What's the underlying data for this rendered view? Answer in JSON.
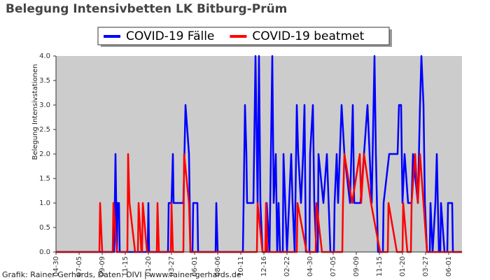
{
  "chart_data": {
    "type": "line",
    "title": "Belegung Intensivbetten LK Bitburg-Prüm",
    "y_label": "Belegung Intensivstationen",
    "footer": "Grafik: Rainer Gerhards, Daten: DIVI | www.rainer-gerhards.de",
    "xlim": [
      0,
      1160
    ],
    "ylim": [
      0,
      4
    ],
    "xticks": [
      {
        "value": 0,
        "label": "04-30"
      },
      {
        "value": 66,
        "label": "07-05"
      },
      {
        "value": 132,
        "label": "09-09"
      },
      {
        "value": 198,
        "label": "11-15"
      },
      {
        "value": 264,
        "label": "01-20"
      },
      {
        "value": 330,
        "label": "03-27"
      },
      {
        "value": 396,
        "label": "06-01"
      },
      {
        "value": 462,
        "label": "08-06"
      },
      {
        "value": 528,
        "label": "10-11"
      },
      {
        "value": 594,
        "label": "12-16"
      },
      {
        "value": 660,
        "label": "02-22"
      },
      {
        "value": 726,
        "label": "04-30"
      },
      {
        "value": 792,
        "label": "07-05"
      },
      {
        "value": 858,
        "label": "09-09"
      },
      {
        "value": 924,
        "label": "11-15"
      },
      {
        "value": 990,
        "label": "01-20"
      },
      {
        "value": 1056,
        "label": "03-27"
      },
      {
        "value": 1122,
        "label": "06-01"
      }
    ],
    "yticks": [
      {
        "value": 0,
        "label": "0.0"
      },
      0.5,
      {
        "value": 1,
        "label": "1.0"
      },
      1.5,
      {
        "value": 2,
        "label": "2.0"
      },
      2.5,
      {
        "value": 3,
        "label": "3.0"
      },
      3.5,
      {
        "value": 4,
        "label": "4.0"
      }
    ],
    "background": "#cccccc",
    "series": [
      {
        "name": "COVID-19 Fälle",
        "color": "#0000ff",
        "x": [
          0,
          166,
          170,
          174,
          176,
          180,
          182,
          262,
          264,
          266,
          320,
          322,
          330,
          334,
          336,
          364,
          370,
          380,
          384,
          390,
          392,
          404,
          406,
          456,
          458,
          462,
          534,
          536,
          540,
          544,
          546,
          564,
          570,
          576,
          580,
          584,
          590,
          600,
          602,
          610,
          616,
          618,
          622,
          628,
          632,
          636,
          640,
          648,
          650,
          660,
          666,
          672,
          676,
          682,
          688,
          692,
          700,
          706,
          710,
          714,
          724,
          726,
          734,
          738,
          744,
          748,
          750,
          764,
          774,
          784,
          794,
          796,
          802,
          806,
          816,
          824,
          840,
          848,
          852,
          870,
          880,
          890,
          896,
          902,
          910,
          914,
          920,
          934,
          936,
          952,
          976,
          980,
          986,
          990,
          996,
          1006,
          1016,
          1020,
          1034,
          1040,
          1044,
          1050,
          1054,
          1060,
          1068,
          1070,
          1076,
          1084,
          1088,
          1094,
          1098,
          1100,
          1110,
          1118,
          1120,
          1132,
          1134,
          1160
        ],
        "values": [
          0,
          0,
          2,
          0,
          1,
          1,
          0,
          0,
          1,
          0,
          0,
          1,
          1,
          2,
          1,
          1,
          3,
          2,
          0,
          0,
          1,
          1,
          0,
          0,
          1,
          0,
          0,
          1,
          3,
          2,
          1,
          1,
          4,
          1,
          4,
          1,
          0,
          0,
          1,
          0,
          3,
          4,
          1,
          2,
          0,
          1,
          0,
          0,
          2,
          0,
          1,
          2,
          1,
          0,
          3,
          2,
          1,
          2,
          3,
          0,
          0,
          2,
          3,
          1,
          0,
          0,
          2,
          1,
          2,
          0,
          0,
          1,
          2,
          1,
          3,
          2,
          1,
          3,
          1,
          1,
          2,
          3,
          2,
          1,
          4,
          2,
          0,
          0,
          1,
          2,
          2,
          3,
          3,
          1,
          2,
          1,
          1,
          2,
          1,
          3,
          4,
          3,
          1,
          0,
          0,
          1,
          0,
          1,
          2,
          0,
          0,
          1,
          0,
          0,
          1,
          1,
          0,
          0
        ]
      },
      {
        "name": "COVID-19 beatmet",
        "color": "#ff0000",
        "x": [
          0,
          124,
          126,
          132,
          162,
          164,
          174,
          204,
          206,
          210,
          226,
          234,
          236,
          244,
          246,
          248,
          260,
          288,
          290,
          294,
          328,
          330,
          334,
          364,
          366,
          380,
          384,
          574,
          576,
          590,
          598,
          600,
          604,
          688,
          690,
          716,
          742,
          744,
          760,
          818,
          820,
          824,
          846,
          868,
          872,
          880,
          900,
          926,
          948,
          950,
          974,
          990,
          992,
          1004,
          1014,
          1016,
          1026,
          1034,
          1040,
          1060,
          1160
        ],
        "values": [
          0,
          0,
          1,
          0,
          0,
          1,
          0,
          0,
          2,
          1,
          0,
          0,
          1,
          0,
          0,
          1,
          0,
          0,
          1,
          0,
          0,
          1,
          0,
          0,
          2,
          1,
          0,
          0,
          1,
          0,
          0,
          1,
          0,
          0,
          1,
          0,
          0,
          1,
          0,
          0,
          1,
          2,
          1,
          2,
          1,
          2,
          1,
          0,
          0,
          1,
          0,
          0,
          1,
          0,
          0,
          1,
          2,
          1,
          2,
          0,
          0
        ]
      }
    ]
  }
}
